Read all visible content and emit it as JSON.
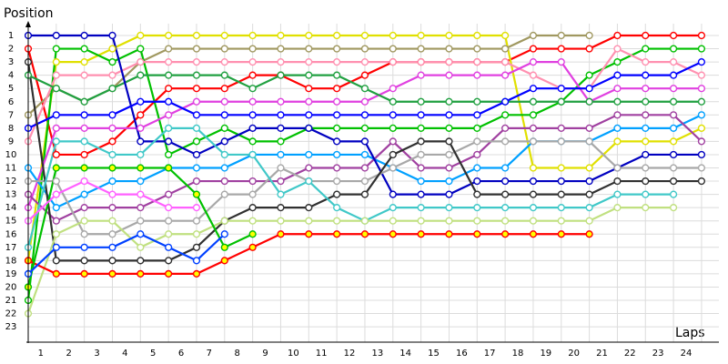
{
  "chart_data": {
    "type": "line",
    "y_title": "Position",
    "x_title": "Laps",
    "categories": [
      null,
      "1",
      "2",
      "3",
      "4",
      "5",
      "6",
      "7",
      "8",
      "9",
      "10",
      "11",
      "12",
      "13",
      "14",
      "15",
      "16",
      "17",
      "18",
      "19",
      "20",
      "21",
      "22",
      "23",
      "24"
    ],
    "ylim": [
      0,
      24
    ],
    "inverted_y": true,
    "yticks": [
      1,
      2,
      3,
      4,
      5,
      6,
      7,
      8,
      9,
      10,
      11,
      12,
      13,
      14,
      15,
      16,
      17,
      18,
      19,
      20,
      21,
      22,
      23
    ],
    "grid": true,
    "series": [
      {
        "color": "#ff0000",
        "values": [
          2,
          10,
          10,
          9,
          7,
          5,
          5,
          5,
          4,
          4,
          5,
          5,
          4,
          3,
          3,
          3,
          3,
          3,
          2,
          2,
          2,
          1,
          1,
          1,
          1
        ]
      },
      {
        "color": "#e0e000",
        "values": [
          18,
          3,
          3,
          2,
          1,
          1,
          1,
          1,
          1,
          1,
          1,
          1,
          1,
          1,
          1,
          1,
          1,
          1,
          11,
          11,
          11,
          9,
          9,
          9,
          8
        ]
      },
      {
        "color": "#a09860",
        "values": [
          7,
          5,
          6,
          5,
          3,
          2,
          2,
          2,
          2,
          2,
          2,
          2,
          2,
          2,
          2,
          2,
          2,
          2,
          1,
          1,
          1,
          null,
          null,
          null,
          null
        ]
      },
      {
        "color": "#00c000",
        "values": [
          21,
          2,
          2,
          3,
          2,
          10,
          9,
          8,
          9,
          9,
          8,
          8,
          8,
          8,
          8,
          8,
          8,
          7,
          7,
          6,
          4,
          3,
          2,
          2,
          2
        ]
      },
      {
        "color": "#ff90b0",
        "values": [
          9,
          4,
          4,
          4,
          3,
          3,
          3,
          3,
          3,
          3,
          3,
          3,
          3,
          3,
          3,
          3,
          3,
          3,
          4,
          5,
          5,
          2,
          3,
          3,
          4
        ]
      },
      {
        "color": "#e040e0",
        "values": [
          14,
          8,
          8,
          8,
          8,
          7,
          6,
          6,
          6,
          6,
          6,
          6,
          6,
          5,
          4,
          4,
          4,
          4,
          3,
          3,
          6,
          5,
          5,
          5,
          5
        ]
      },
      {
        "color": "#20a040",
        "values": [
          4,
          5,
          6,
          5,
          4,
          4,
          4,
          4,
          5,
          4,
          4,
          4,
          5,
          6,
          6,
          6,
          6,
          6,
          6,
          6,
          6,
          6,
          6,
          6,
          6
        ]
      },
      {
        "color": "#00a0ff",
        "values": [
          11,
          14,
          13,
          12,
          12,
          11,
          11,
          11,
          10,
          10,
          10,
          10,
          10,
          11,
          12,
          12,
          11,
          11,
          9,
          9,
          9,
          8,
          8,
          8,
          7
        ]
      },
      {
        "color": "#a040a0",
        "values": [
          13,
          15,
          14,
          14,
          14,
          13,
          12,
          12,
          12,
          12,
          11,
          11,
          11,
          9,
          11,
          11,
          10,
          8,
          8,
          8,
          8,
          7,
          7,
          7,
          9
        ]
      },
      {
        "color": "#0000c0",
        "values": [
          1,
          1,
          1,
          1,
          9,
          9,
          10,
          9,
          8,
          8,
          8,
          9,
          9,
          13,
          13,
          13,
          12,
          12,
          12,
          12,
          12,
          11,
          10,
          10,
          10
        ]
      },
      {
        "color": "#0000ff",
        "values": [
          8,
          7,
          7,
          7,
          6,
          6,
          7,
          7,
          7,
          7,
          7,
          7,
          7,
          7,
          7,
          7,
          7,
          6,
          5,
          5,
          5,
          4,
          4,
          4,
          3
        ]
      },
      {
        "color": "#a8a8a8",
        "values": [
          12,
          12,
          16,
          16,
          15,
          15,
          15,
          13,
          13,
          11,
          12,
          12,
          12,
          11,
          10,
          10,
          9,
          9,
          9,
          9,
          9,
          11,
          11,
          11,
          11
        ]
      },
      {
        "color": "#303030",
        "values": [
          3,
          18,
          18,
          18,
          18,
          18,
          17,
          15,
          14,
          14,
          14,
          13,
          13,
          10,
          9,
          9,
          13,
          13,
          13,
          13,
          13,
          12,
          12,
          12,
          12
        ]
      },
      {
        "color": "#40c8c8",
        "values": [
          17,
          9,
          9,
          10,
          10,
          8,
          8,
          10,
          10,
          13,
          12,
          14,
          15,
          14,
          14,
          14,
          14,
          14,
          14,
          14,
          14,
          13,
          13,
          13,
          null
        ]
      },
      {
        "color": "#c0e080",
        "values": [
          22,
          16,
          15,
          15,
          17,
          16,
          16,
          15,
          15,
          15,
          15,
          15,
          15,
          15,
          15,
          15,
          15,
          15,
          15,
          15,
          15,
          14,
          14,
          14,
          null
        ]
      },
      {
        "color": "#ff0000",
        "marker_fill": "#ffff00",
        "values": [
          18,
          19,
          19,
          19,
          19,
          19,
          19,
          18,
          17,
          16,
          16,
          16,
          16,
          16,
          16,
          16,
          16,
          16,
          16,
          16,
          16,
          null,
          null,
          null,
          null
        ]
      },
      {
        "color": "#00c000",
        "marker_fill": "#ffff00",
        "values": [
          20,
          11,
          11,
          11,
          11,
          11,
          13,
          17,
          16,
          null,
          null,
          null,
          null,
          null,
          null,
          null,
          null,
          null,
          null,
          null,
          null,
          null,
          null,
          null,
          null
        ]
      },
      {
        "color": "#0040ff",
        "values": [
          19,
          17,
          17,
          17,
          16,
          17,
          18,
          16,
          null,
          null,
          null,
          null,
          null,
          null,
          null,
          null,
          null,
          null,
          null,
          null,
          null,
          null,
          null,
          null,
          null
        ]
      },
      {
        "color": "#ff60ff",
        "values": [
          15,
          13,
          12,
          13,
          13,
          14,
          14,
          null,
          null,
          null,
          null,
          null,
          null,
          null,
          null,
          null,
          null,
          null,
          null,
          null,
          null,
          null,
          null,
          null,
          null
        ]
      }
    ]
  }
}
